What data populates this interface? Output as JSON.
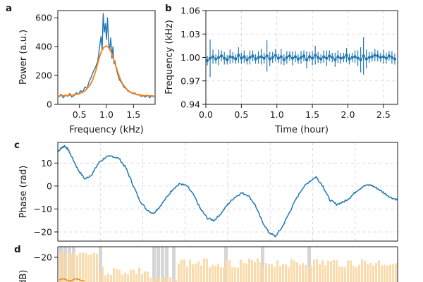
{
  "chart_data": [
    {
      "panel": "a",
      "type": "line",
      "xlabel": "Frequency (kHz)",
      "ylabel": "Power (a.u.)",
      "xlim": [
        0.1,
        1.9
      ],
      "ylim": [
        0,
        650
      ],
      "xticks": [
        0.5,
        1.0,
        1.5
      ],
      "xtick_labels": [
        "0.5",
        "1.0",
        "1.5"
      ],
      "yticks": [
        0,
        200,
        400,
        600
      ],
      "ytick_labels": [
        "0",
        "200",
        "400",
        "600"
      ],
      "grid": false,
      "series": [
        {
          "role": "measured",
          "color": "#1f77b4",
          "x": [
            0.12,
            0.16,
            0.2,
            0.24,
            0.28,
            0.32,
            0.36,
            0.4,
            0.44,
            0.48,
            0.52,
            0.56,
            0.6,
            0.64,
            0.68,
            0.72,
            0.76,
            0.8,
            0.84,
            0.88,
            0.9,
            0.92,
            0.94,
            0.96,
            0.98,
            1.0,
            1.02,
            1.04,
            1.06,
            1.08,
            1.1,
            1.12,
            1.14,
            1.16,
            1.18,
            1.2,
            1.24,
            1.28,
            1.32,
            1.36,
            1.4,
            1.44,
            1.48,
            1.52,
            1.56,
            1.6,
            1.64,
            1.68,
            1.72,
            1.76,
            1.8,
            1.84,
            1.88
          ],
          "y": [
            50,
            70,
            45,
            65,
            55,
            75,
            50,
            60,
            80,
            70,
            95,
            85,
            120,
            110,
            160,
            190,
            230,
            260,
            300,
            420,
            470,
            380,
            630,
            500,
            560,
            450,
            600,
            420,
            380,
            460,
            320,
            400,
            280,
            300,
            250,
            220,
            170,
            150,
            120,
            110,
            90,
            85,
            75,
            80,
            65,
            70,
            55,
            60,
            50,
            65,
            45,
            60,
            50
          ]
        },
        {
          "role": "fit",
          "color": "#ff7f0e",
          "x": [
            0.12,
            0.2,
            0.3,
            0.4,
            0.5,
            0.6,
            0.7,
            0.75,
            0.8,
            0.85,
            0.9,
            0.95,
            1.0,
            1.05,
            1.1,
            1.15,
            1.2,
            1.25,
            1.3,
            1.4,
            1.5,
            1.6,
            1.7,
            1.8,
            1.88
          ],
          "y": [
            58,
            60,
            62,
            66,
            74,
            92,
            135,
            175,
            230,
            300,
            360,
            395,
            405,
            390,
            350,
            295,
            235,
            180,
            140,
            95,
            75,
            65,
            61,
            59,
            58
          ]
        }
      ]
    },
    {
      "panel": "b",
      "type": "scatter",
      "xlabel": "Time (hour)",
      "ylabel": "Frequency (kHz)",
      "xlim": [
        0,
        2.7
      ],
      "ylim": [
        0.94,
        1.06
      ],
      "xticks": [
        0.0,
        0.5,
        1.0,
        1.5,
        2.0,
        2.5
      ],
      "xtick_labels": [
        "0.0",
        "0.5",
        "1.0",
        "1.5",
        "2.0",
        "2.5"
      ],
      "yticks": [
        0.94,
        0.97,
        1.0,
        1.03,
        1.06
      ],
      "ytick_labels": [
        "0.94",
        "0.97",
        "1.00",
        "1.03",
        "1.06"
      ],
      "grid": true,
      "series": [
        {
          "color": "#1f77b4",
          "x": [
            0.02,
            0.06,
            0.1,
            0.14,
            0.18,
            0.22,
            0.26,
            0.3,
            0.34,
            0.38,
            0.42,
            0.46,
            0.5,
            0.54,
            0.58,
            0.62,
            0.66,
            0.7,
            0.74,
            0.78,
            0.82,
            0.86,
            0.9,
            0.94,
            0.98,
            1.02,
            1.06,
            1.1,
            1.14,
            1.18,
            1.22,
            1.26,
            1.3,
            1.34,
            1.38,
            1.42,
            1.46,
            1.5,
            1.54,
            1.58,
            1.62,
            1.66,
            1.7,
            1.74,
            1.78,
            1.82,
            1.86,
            1.9,
            1.94,
            1.98,
            2.02,
            2.06,
            2.1,
            2.14,
            2.18,
            2.22,
            2.26,
            2.3,
            2.34,
            2.38,
            2.42,
            2.46,
            2.5,
            2.54,
            2.58,
            2.62,
            2.66
          ],
          "y": [
            0.996,
            0.999,
            1.001,
            0.998,
            1.0,
            1.002,
            0.999,
            0.997,
            1.001,
            1.0,
            0.998,
            1.003,
            0.999,
            1.001,
            0.997,
            1.0,
            1.002,
            0.998,
            1.0,
            1.001,
            0.999,
            1.002,
            0.998,
            1.0,
            1.003,
            0.999,
            1.001,
            0.997,
            1.0,
            1.002,
            0.999,
            1.001,
            0.998,
            1.0,
            1.002,
            0.997,
            1.001,
            0.999,
            1.003,
            1.0,
            0.998,
            1.001,
            0.999,
            1.002,
            1.0,
            0.997,
            1.001,
            0.999,
            1.0,
            1.003,
            0.998,
            1.0,
            1.001,
            0.999,
            0.997,
            1.002,
            0.998,
            1.0,
            1.001,
            1.003,
            1.002,
            1.0,
            1.001,
            0.999,
            1.002,
            1.0,
            0.998
          ],
          "err": [
            0.006,
            0.024,
            0.009,
            0.006,
            0.01,
            0.007,
            0.008,
            0.006,
            0.009,
            0.007,
            0.006,
            0.01,
            0.007,
            0.008,
            0.006,
            0.009,
            0.007,
            0.006,
            0.008,
            0.01,
            0.007,
            0.02,
            0.009,
            0.007,
            0.008,
            0.006,
            0.01,
            0.007,
            0.008,
            0.006,
            0.009,
            0.007,
            0.006,
            0.008,
            0.007,
            0.011,
            0.006,
            0.009,
            0.012,
            0.007,
            0.006,
            0.008,
            0.01,
            0.007,
            0.006,
            0.009,
            0.008,
            0.007,
            0.006,
            0.009,
            0.007,
            0.006,
            0.008,
            0.01,
            0.016,
            0.024,
            0.012,
            0.007,
            0.006,
            0.008,
            0.007,
            0.006,
            0.009,
            0.007,
            0.006,
            0.008,
            0.007
          ]
        }
      ]
    },
    {
      "panel": "c",
      "type": "line",
      "xlabel": "",
      "ylabel": "Phase (rad)",
      "xlim": [
        0,
        1
      ],
      "ylim": [
        -24,
        19
      ],
      "yticks": [
        -20,
        -10,
        0,
        10
      ],
      "ytick_labels": [
        "−20",
        "−10",
        "0",
        "10"
      ],
      "grid": true,
      "series": [
        {
          "color": "#1f77b4",
          "x": [
            0,
            0.01,
            0.02,
            0.03,
            0.04,
            0.06,
            0.08,
            0.1,
            0.12,
            0.14,
            0.16,
            0.18,
            0.2,
            0.22,
            0.24,
            0.26,
            0.28,
            0.3,
            0.32,
            0.34,
            0.36,
            0.38,
            0.4,
            0.42,
            0.44,
            0.46,
            0.48,
            0.5,
            0.52,
            0.54,
            0.56,
            0.58,
            0.6,
            0.62,
            0.64,
            0.66,
            0.68,
            0.7,
            0.72,
            0.74,
            0.76,
            0.78,
            0.8,
            0.82,
            0.84,
            0.86,
            0.88,
            0.9,
            0.92,
            0.94,
            0.96,
            0.98,
            1.0
          ],
          "y": [
            15,
            16.5,
            17.5,
            16,
            13,
            7,
            3,
            5,
            10,
            12.5,
            13,
            12,
            8,
            1,
            -6,
            -10,
            -12,
            -9,
            -5,
            -1,
            1,
            0,
            -4,
            -10,
            -14,
            -15,
            -12,
            -8,
            -5,
            -3,
            -4,
            -8,
            -15,
            -20,
            -22,
            -18,
            -12,
            -6,
            -1,
            2,
            4,
            0,
            -6,
            -8,
            -7,
            -5,
            -2,
            0,
            0.5,
            -1,
            -3,
            -5,
            -6
          ]
        }
      ]
    },
    {
      "panel": "d",
      "type": "bar",
      "xlabel": "",
      "ylabel": "(dB)",
      "yticks": [
        -20
      ],
      "ytick_labels": [
        "−20"
      ],
      "series": []
    }
  ]
}
